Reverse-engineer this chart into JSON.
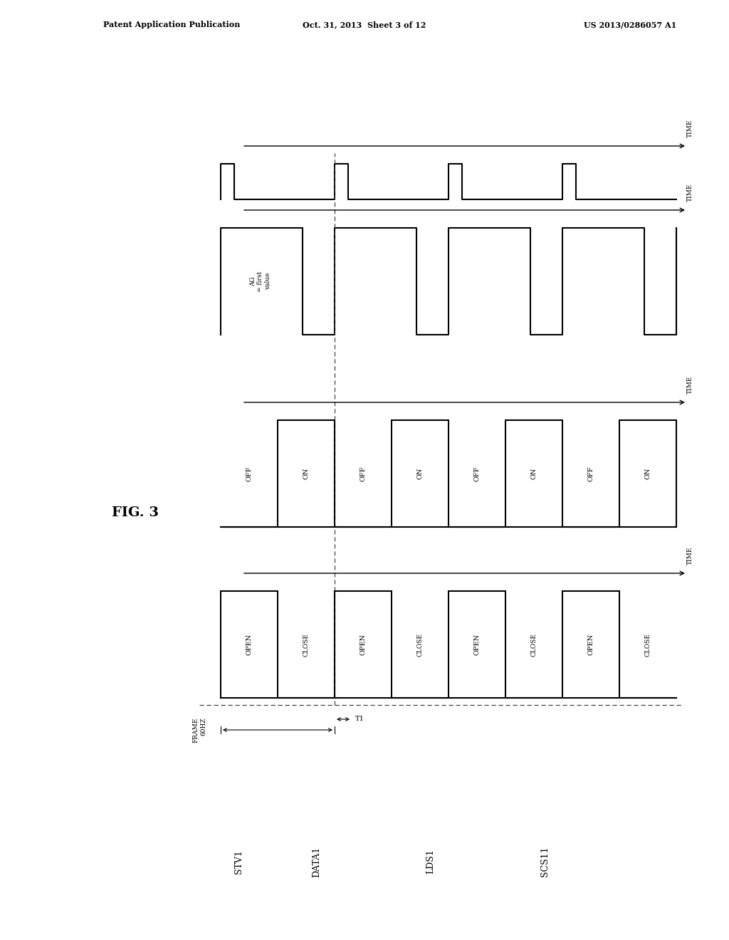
{
  "header_left": "Patent Application Publication",
  "header_mid": "Oct. 31, 2013  Sheet 3 of 12",
  "header_right": "US 2013/0286057 A1",
  "fig_label": "FIG. 3",
  "signal_names": [
    "STV1",
    "DATA1",
    "LDS1",
    "SCS11"
  ],
  "background_color": "#ffffff",
  "line_color": "#000000",
  "dashed_color": "#555555",
  "frame_label": "FRAME\n60HZ",
  "ag_label": "AG\n= first\nvalue",
  "t1_label": "T1"
}
